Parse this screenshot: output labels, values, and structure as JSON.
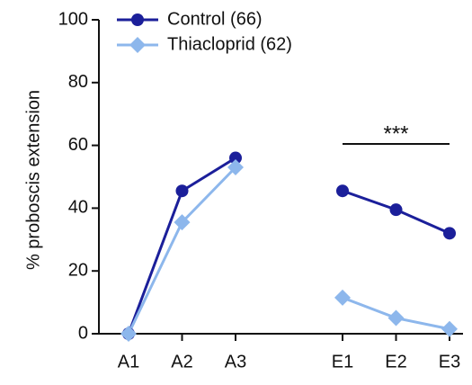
{
  "chart_data": {
    "type": "line",
    "categories": [
      "A1",
      "A2",
      "A3",
      null,
      "E1",
      "E2",
      "E3"
    ],
    "series": [
      {
        "name": "Control (66)",
        "color": "#1b1f9a",
        "marker": "circle",
        "values": [
          0,
          45.5,
          56,
          null,
          45.5,
          39.5,
          32
        ]
      },
      {
        "name": "Thiacloprid (62)",
        "color": "#8db7ec",
        "marker": "diamond",
        "values": [
          0,
          35.5,
          53,
          null,
          11.5,
          5,
          1.5
        ]
      }
    ],
    "ylabel": "% proboscis extension",
    "ylim": [
      0,
      100
    ],
    "yticks": [
      0,
      20,
      40,
      60,
      80,
      100
    ],
    "annotation": "***",
    "legend": "upper left"
  }
}
